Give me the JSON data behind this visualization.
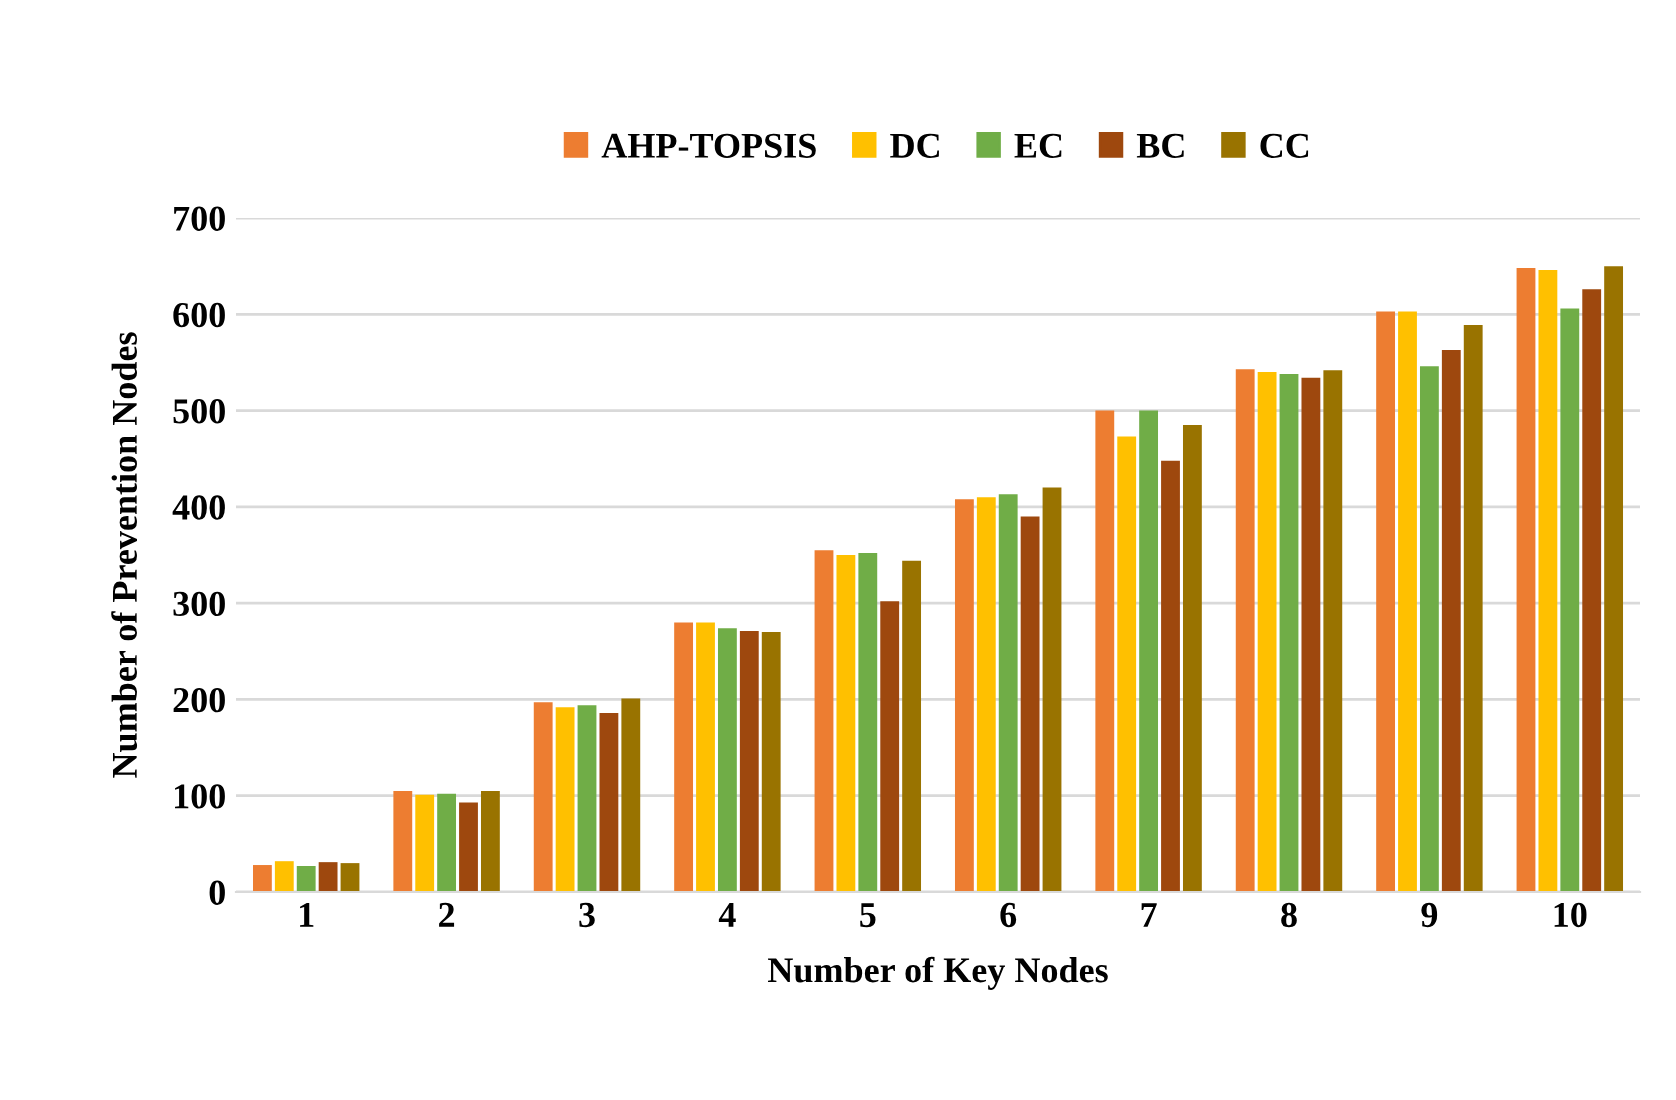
{
  "chart_data": {
    "type": "bar",
    "xlabel": "Number of Key Nodes",
    "ylabel": "Number of Prevention Nodes",
    "categories": [
      "1",
      "2",
      "3",
      "4",
      "5",
      "6",
      "7",
      "8",
      "9",
      "10"
    ],
    "series": [
      {
        "name": "AHP-TOPSIS",
        "color": "#ed7d31",
        "values": [
          28,
          105,
          197,
          280,
          355,
          408,
          500,
          543,
          603,
          648
        ]
      },
      {
        "name": "DC",
        "color": "#ffc000",
        "values": [
          32,
          101,
          192,
          280,
          350,
          410,
          473,
          540,
          603,
          646
        ]
      },
      {
        "name": "EC",
        "color": "#70ad47",
        "values": [
          27,
          102,
          194,
          274,
          352,
          413,
          500,
          538,
          546,
          606
        ]
      },
      {
        "name": "BC",
        "color": "#9e480e",
        "values": [
          31,
          93,
          186,
          271,
          302,
          390,
          448,
          534,
          563,
          626
        ]
      },
      {
        "name": "CC",
        "color": "#997300",
        "values": [
          30,
          105,
          201,
          270,
          344,
          420,
          485,
          542,
          589,
          650
        ]
      }
    ],
    "ylim": [
      0,
      700
    ],
    "yticks": [
      0,
      100,
      200,
      300,
      400,
      500,
      600,
      700
    ],
    "grid": "y",
    "legend": "top"
  }
}
